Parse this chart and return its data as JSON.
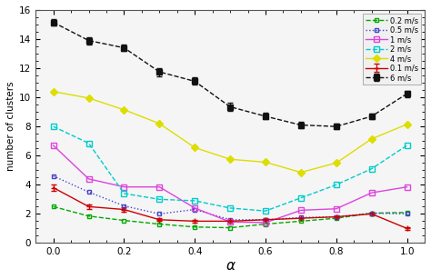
{
  "alpha": [
    0,
    0.1,
    0.2,
    0.3,
    0.4,
    0.5,
    0.6,
    0.7,
    0.8,
    0.9,
    1.0
  ],
  "series": {
    "0.1 m/s": {
      "values": [
        3.8,
        2.5,
        2.3,
        1.6,
        1.5,
        1.5,
        1.6,
        1.7,
        1.8,
        2.0,
        1.0
      ],
      "color": "#cc0000",
      "marker": "+",
      "linestyle": "-",
      "markersize": 5
    },
    "0.2 m/s": {
      "values": [
        2.5,
        1.85,
        1.55,
        1.3,
        1.1,
        1.05,
        1.3,
        1.5,
        1.7,
        2.05,
        2.1
      ],
      "color": "#00aa00",
      "marker": "s",
      "linestyle": "--",
      "markersize": 3
    },
    "0.5 m/s": {
      "values": [
        4.6,
        3.5,
        2.55,
        2.0,
        2.3,
        1.6,
        1.6,
        1.75,
        1.8,
        2.05,
        2.0
      ],
      "color": "#4444cc",
      "marker": "s",
      "linestyle": ":",
      "markersize": 3
    },
    "1 m/s": {
      "values": [
        6.7,
        4.4,
        3.85,
        3.85,
        2.4,
        1.45,
        1.4,
        2.25,
        2.35,
        3.45,
        3.85
      ],
      "color": "#dd44dd",
      "marker": "s",
      "linestyle": "-",
      "markersize": 4
    },
    "2 m/s": {
      "values": [
        8.0,
        6.85,
        3.4,
        3.0,
        2.9,
        2.4,
        2.2,
        3.1,
        4.0,
        5.1,
        6.7
      ],
      "color": "#00cccc",
      "marker": "s",
      "linestyle": "--",
      "markersize": 4
    },
    "4 m/s": {
      "values": [
        10.4,
        9.95,
        9.15,
        8.2,
        6.55,
        5.75,
        5.55,
        4.85,
        5.5,
        7.15,
        8.15
      ],
      "color": "#dddd00",
      "marker": "D",
      "linestyle": "-",
      "markersize": 4
    },
    "6 m/s": {
      "values": [
        15.15,
        13.9,
        13.4,
        11.75,
        11.1,
        9.35,
        8.7,
        8.1,
        8.0,
        8.7,
        10.25
      ],
      "color": "#111111",
      "marker": "s",
      "linestyle": "--",
      "markersize": 4
    }
  },
  "errors": {
    "0.1 m/s": [
      0.2,
      0.15,
      0.15,
      0.1,
      0.1,
      0.1,
      0.1,
      0.1,
      0.1,
      0.1,
      0.1
    ],
    "6 m/s": [
      0.2,
      0.25,
      0.22,
      0.28,
      0.25,
      0.28,
      0.22,
      0.2,
      0.2,
      0.2,
      0.22
    ]
  },
  "xlabel": "α",
  "ylabel": "number of clusters",
  "xlim": [
    -0.05,
    1.05
  ],
  "ylim": [
    0,
    16
  ],
  "yticks": [
    0,
    2,
    4,
    6,
    8,
    10,
    12,
    14,
    16
  ],
  "xticks": [
    0,
    0.2,
    0.4,
    0.6,
    0.8,
    1.0
  ],
  "background_color": "#ffffff",
  "plot_bg": "#f5f5f5",
  "legend_order": [
    "0.1 m/s",
    "0.2 m/s",
    "0.5 m/s",
    "1 m/s",
    "2 m/s",
    "4 m/s",
    "6 m/s"
  ]
}
